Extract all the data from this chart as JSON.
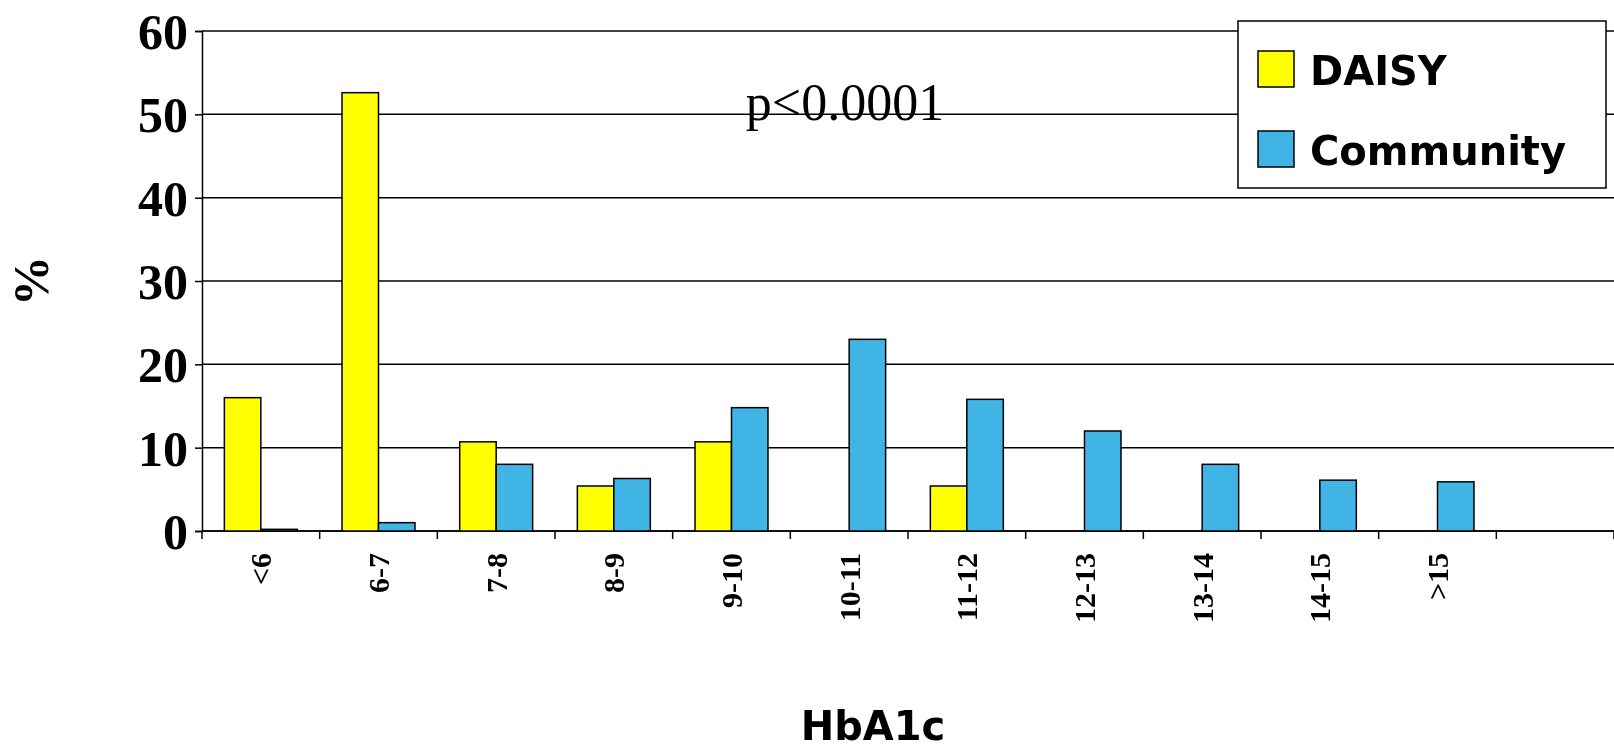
{
  "chart_data": {
    "type": "bar",
    "xlabel": "HbA1c",
    "ylabel": "%",
    "categories": [
      "<6",
      "6-7",
      "7-8",
      "8-9",
      "9-10",
      "10-11",
      "11-12",
      "12-13",
      "13-14",
      "14-15",
      ">15",
      null
    ],
    "series": [
      {
        "name": "DAISY",
        "color": "#ffff00",
        "values": [
          16,
          52.6,
          10.7,
          5.4,
          10.7,
          0,
          5.4,
          0,
          0,
          0,
          0,
          null
        ]
      },
      {
        "name": "Community",
        "color": "#41b4e6",
        "values": [
          0.2,
          1,
          8,
          6.3,
          14.8,
          23,
          15.8,
          12,
          8,
          6.1,
          5.9,
          null
        ]
      }
    ],
    "ylim": [
      0,
      60
    ],
    "yticks": [
      0,
      10,
      20,
      30,
      40,
      50,
      60
    ],
    "grid": "y",
    "legend": "top right",
    "annotations": [
      "p<0.0001"
    ]
  }
}
